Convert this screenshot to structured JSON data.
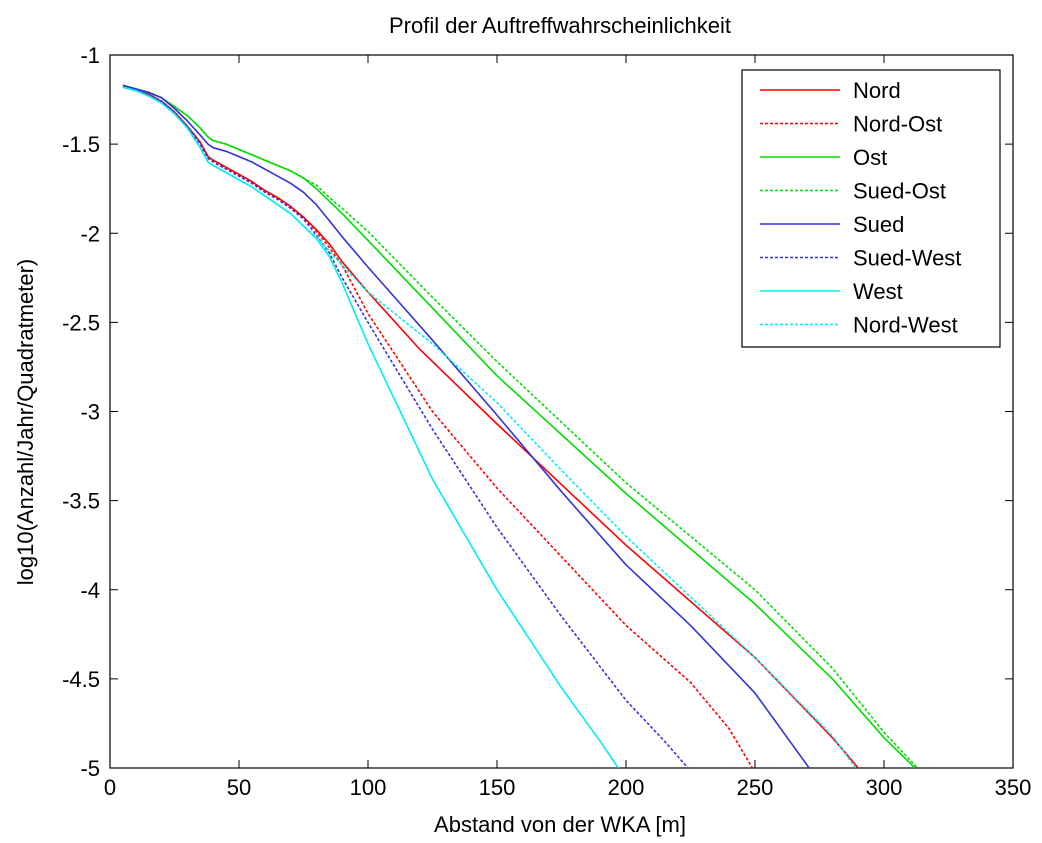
{
  "chart_data": {
    "type": "line",
    "title": "Profil der Auftreffwahrscheinlichkeit",
    "xlabel": "Abstand von der WKA [m]",
    "ylabel": "log10(Anzahl/Jahr/Quadratmeter)",
    "xlim": [
      0,
      350
    ],
    "ylim": [
      -5,
      -1
    ],
    "xticks": [
      0,
      50,
      100,
      150,
      200,
      250,
      300,
      350
    ],
    "xtick_labels": [
      "0",
      "50",
      "100",
      "150",
      "200",
      "250",
      "300",
      "350"
    ],
    "yticks": [
      -1,
      -1.5,
      -2,
      -2.5,
      -3,
      -3.5,
      -4,
      -4.5,
      -5
    ],
    "ytick_labels": [
      "-1",
      "-1.5",
      "-2",
      "-2.5",
      "-3",
      "-3.5",
      "-4",
      "-4.5",
      "-5"
    ],
    "grid": false,
    "legend_position": "top-right",
    "series": [
      {
        "name": "Nord",
        "color": "#ff0000",
        "dash": "solid",
        "x": [
          5,
          10,
          15,
          20,
          25,
          30,
          35,
          38,
          40,
          45,
          50,
          55,
          60,
          65,
          70,
          75,
          80,
          85,
          90,
          100,
          120,
          150,
          200,
          250,
          280,
          290
        ],
        "y": [
          -1.18,
          -1.2,
          -1.22,
          -1.26,
          -1.32,
          -1.4,
          -1.49,
          -1.57,
          -1.59,
          -1.63,
          -1.67,
          -1.71,
          -1.76,
          -1.8,
          -1.85,
          -1.91,
          -1.98,
          -2.06,
          -2.16,
          -2.33,
          -2.65,
          -3.07,
          -3.75,
          -4.38,
          -4.83,
          -5.0
        ]
      },
      {
        "name": "Nord-Ost",
        "color": "#ff0000",
        "dash": "dashed",
        "x": [
          5,
          10,
          15,
          20,
          25,
          30,
          35,
          38,
          40,
          45,
          50,
          55,
          60,
          65,
          70,
          75,
          80,
          85,
          90,
          100,
          125,
          150,
          200,
          225,
          240,
          249
        ],
        "y": [
          -1.18,
          -1.2,
          -1.22,
          -1.26,
          -1.32,
          -1.4,
          -1.49,
          -1.57,
          -1.59,
          -1.63,
          -1.67,
          -1.71,
          -1.76,
          -1.8,
          -1.85,
          -1.91,
          -1.99,
          -2.08,
          -2.18,
          -2.45,
          -3.0,
          -3.43,
          -4.2,
          -4.52,
          -4.78,
          -5.0
        ]
      },
      {
        "name": "Ost",
        "color": "#00dd00",
        "dash": "solid",
        "x": [
          5,
          10,
          15,
          20,
          25,
          30,
          35,
          38,
          40,
          45,
          50,
          55,
          60,
          65,
          70,
          75,
          80,
          85,
          90,
          100,
          125,
          150,
          200,
          250,
          280,
          300,
          312
        ],
        "y": [
          -1.17,
          -1.19,
          -1.21,
          -1.24,
          -1.29,
          -1.34,
          -1.41,
          -1.46,
          -1.48,
          -1.5,
          -1.53,
          -1.56,
          -1.59,
          -1.62,
          -1.65,
          -1.69,
          -1.75,
          -1.82,
          -1.89,
          -2.04,
          -2.42,
          -2.8,
          -3.46,
          -4.08,
          -4.5,
          -4.83,
          -5.0
        ]
      },
      {
        "name": "Sued-Ost",
        "color": "#00dd00",
        "dash": "dashed",
        "x": [
          5,
          10,
          15,
          20,
          25,
          30,
          35,
          38,
          40,
          45,
          50,
          55,
          60,
          65,
          70,
          75,
          80,
          85,
          90,
          100,
          125,
          150,
          200,
          250,
          280,
          300,
          313
        ],
        "y": [
          -1.17,
          -1.19,
          -1.21,
          -1.24,
          -1.29,
          -1.34,
          -1.41,
          -1.46,
          -1.48,
          -1.5,
          -1.53,
          -1.56,
          -1.59,
          -1.62,
          -1.65,
          -1.69,
          -1.73,
          -1.8,
          -1.86,
          -1.99,
          -2.36,
          -2.72,
          -3.4,
          -4.0,
          -4.44,
          -4.8,
          -5.0
        ]
      },
      {
        "name": "Sued",
        "color": "#3333dd",
        "dash": "solid",
        "x": [
          5,
          10,
          15,
          20,
          25,
          30,
          35,
          38,
          40,
          45,
          50,
          55,
          60,
          65,
          70,
          75,
          80,
          85,
          90,
          100,
          125,
          150,
          175,
          200,
          225,
          250,
          271
        ],
        "y": [
          -1.17,
          -1.19,
          -1.21,
          -1.24,
          -1.3,
          -1.37,
          -1.45,
          -1.5,
          -1.52,
          -1.54,
          -1.57,
          -1.6,
          -1.64,
          -1.68,
          -1.72,
          -1.77,
          -1.84,
          -1.93,
          -2.02,
          -2.19,
          -2.6,
          -3.02,
          -3.45,
          -3.86,
          -4.2,
          -4.58,
          -5.0
        ]
      },
      {
        "name": "Sued-West",
        "color": "#3333dd",
        "dash": "dashed",
        "x": [
          5,
          10,
          15,
          20,
          25,
          30,
          35,
          38,
          40,
          45,
          50,
          55,
          60,
          65,
          70,
          75,
          80,
          85,
          90,
          100,
          125,
          150,
          175,
          200,
          215,
          224
        ],
        "y": [
          -1.18,
          -1.2,
          -1.22,
          -1.26,
          -1.32,
          -1.4,
          -1.5,
          -1.58,
          -1.6,
          -1.64,
          -1.68,
          -1.72,
          -1.77,
          -1.81,
          -1.86,
          -1.92,
          -2.01,
          -2.11,
          -2.25,
          -2.5,
          -3.1,
          -3.65,
          -4.15,
          -4.62,
          -4.85,
          -5.0
        ]
      },
      {
        "name": "West",
        "color": "#00eeee",
        "dash": "solid",
        "x": [
          5,
          10,
          15,
          20,
          25,
          30,
          35,
          38,
          40,
          45,
          50,
          55,
          60,
          65,
          70,
          75,
          80,
          85,
          90,
          100,
          125,
          150,
          175,
          190,
          197
        ],
        "y": [
          -1.18,
          -1.2,
          -1.23,
          -1.27,
          -1.33,
          -1.41,
          -1.52,
          -1.6,
          -1.62,
          -1.66,
          -1.7,
          -1.74,
          -1.79,
          -1.84,
          -1.89,
          -1.96,
          -2.03,
          -2.13,
          -2.28,
          -2.62,
          -3.38,
          -4.0,
          -4.55,
          -4.85,
          -5.0
        ]
      },
      {
        "name": "Nord-West",
        "color": "#00eeee",
        "dash": "dashed",
        "x": [
          5,
          10,
          15,
          20,
          25,
          30,
          35,
          38,
          40,
          45,
          50,
          55,
          60,
          65,
          70,
          75,
          80,
          85,
          90,
          100,
          125,
          150,
          175,
          200,
          250,
          280,
          289
        ],
        "y": [
          -1.18,
          -1.2,
          -1.23,
          -1.27,
          -1.33,
          -1.41,
          -1.52,
          -1.6,
          -1.62,
          -1.66,
          -1.7,
          -1.74,
          -1.79,
          -1.84,
          -1.89,
          -1.96,
          -2.02,
          -2.1,
          -2.18,
          -2.33,
          -2.62,
          -2.95,
          -3.33,
          -3.7,
          -4.38,
          -4.82,
          -5.0
        ]
      }
    ]
  }
}
